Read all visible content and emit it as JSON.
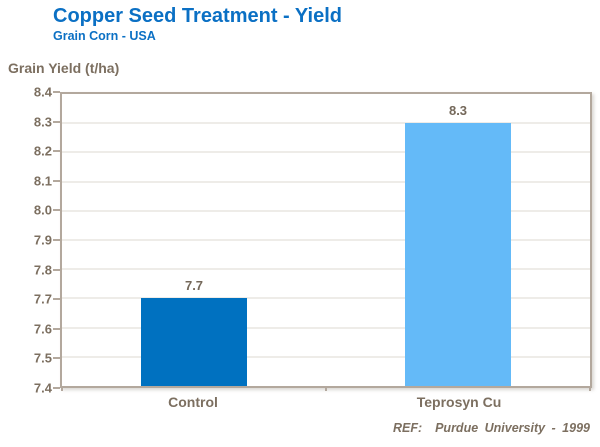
{
  "header": {
    "title": "Copper Seed Treatment - Yield",
    "subtitle": "Grain Corn - USA"
  },
  "y_axis_title": "Grain Yield (t/ha)",
  "footer": {
    "reference": "REF:  Purdue University - 1999"
  },
  "chart_data": {
    "type": "bar",
    "categories": [
      "Control",
      "Teprosyn Cu"
    ],
    "values": [
      7.7,
      8.3
    ],
    "data_labels": [
      "7.7",
      "8.3"
    ],
    "title": "Copper Seed Treatment - Yield",
    "subtitle": "Grain Corn - USA",
    "xlabel": "",
    "ylabel": "Grain Yield (t/ha)",
    "ylim": [
      7.4,
      8.4
    ],
    "ytick_step": 0.1,
    "ytick_labels": [
      "8.4",
      "8.3",
      "8.2",
      "8.1",
      "8.0",
      "7.9",
      "7.8",
      "7.7",
      "7.6",
      "7.5",
      "7.4"
    ],
    "grid": true,
    "legend": "none",
    "bar_colors": [
      "#0071c0",
      "#64baf8"
    ],
    "annotations": [
      "REF:  Purdue University - 1999"
    ]
  },
  "colors": {
    "title_blue": "#0b70c4",
    "bar_control": "#0071c0",
    "bar_teprosyn_cu": "#64baf8",
    "axis_text": "#7c6f60",
    "axis_line": "#b3a89d",
    "gridline": "#dcd8d2"
  }
}
